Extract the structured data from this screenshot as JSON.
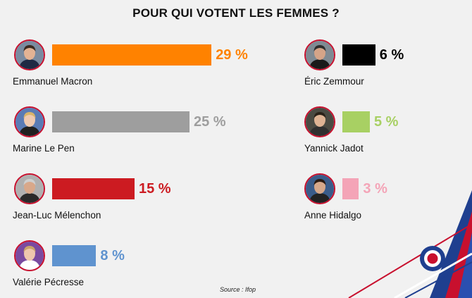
{
  "title": "POUR QUI VOTENT LES FEMMES ?",
  "source": "Source : Ifop",
  "chart_data": {
    "type": "bar",
    "title": "POUR QUI VOTENT LES FEMMES ?",
    "unit": "%",
    "categories": [
      "Emmanuel Macron",
      "Marine Le Pen",
      "Jean-Luc Mélenchon",
      "Valérie Pécresse",
      "Éric Zemmour",
      "Yannick Jadot",
      "Anne Hidalgo"
    ],
    "values": [
      29,
      25,
      15,
      8,
      6,
      5,
      3
    ],
    "labels": [
      "29 %",
      "25 %",
      "15 %",
      "8 %",
      "6 %",
      "5 %",
      "3 %"
    ],
    "colors": [
      "#ff8200",
      "#9e9e9e",
      "#cc1b21",
      "#5f93cf",
      "#000000",
      "#a8d063",
      "#f4a4b7"
    ],
    "grid": false,
    "legend": "none"
  },
  "avatars": [
    {
      "icon": "macron-portrait-icon",
      "bg": "#7a8ba0",
      "skin": "#e3b394",
      "hair": "#3b2a20",
      "shirt": "#1f2a44"
    },
    {
      "icon": "le-pen-portrait-icon",
      "bg": "#5a7bb5",
      "skin": "#efc9b0",
      "hair": "#d8b46a",
      "shirt": "#202020"
    },
    {
      "icon": "melenchon-portrait-icon",
      "bg": "#b0b0b0",
      "skin": "#d9a88a",
      "hair": "#cfcfcf",
      "shirt": "#2a2a2a"
    },
    {
      "icon": "pecresse-portrait-icon",
      "bg": "#7a4aa0",
      "skin": "#efc7ad",
      "hair": "#c9a36a",
      "shirt": "#ffffff"
    },
    {
      "icon": "zemmour-portrait-icon",
      "bg": "#7f8a93",
      "skin": "#d5a488",
      "hair": "#2d2d2d",
      "shirt": "#1a1a1a"
    },
    {
      "icon": "jadot-portrait-icon",
      "bg": "#4a4a42",
      "skin": "#deb394",
      "hair": "#2a2118",
      "shirt": "#303030"
    },
    {
      "icon": "hidalgo-portrait-icon",
      "bg": "#3a5c8a",
      "skin": "#d6a88a",
      "hair": "#2b1b12",
      "shirt": "#222222"
    }
  ]
}
